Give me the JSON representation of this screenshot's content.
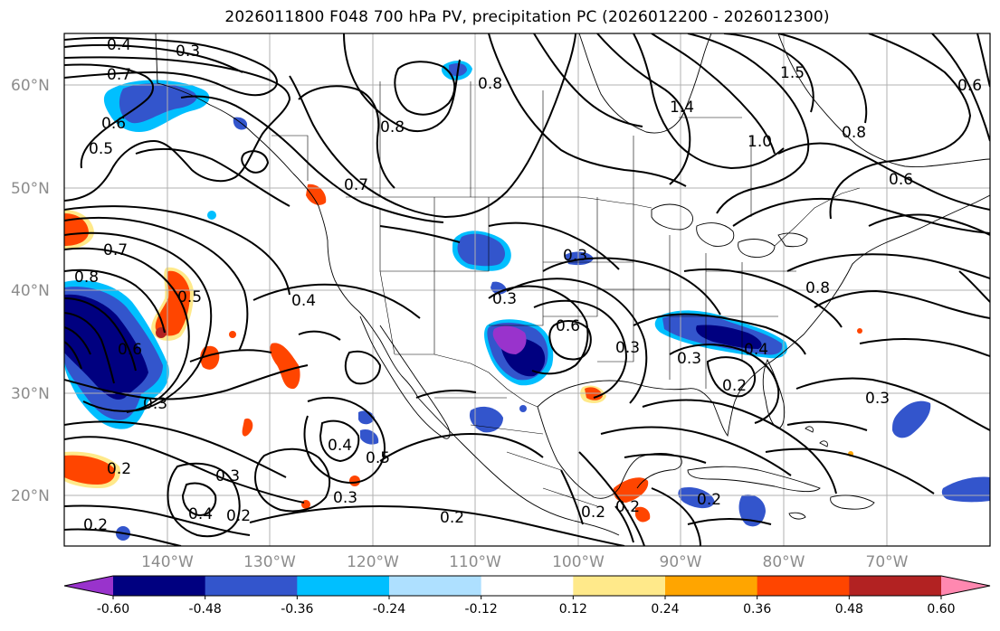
{
  "title": "2026011800 F048 700 hPa PV, precipitation PC (2026012200 - 2026012300)",
  "lat_labels": [
    "60°N",
    "50°N",
    "40°N",
    "30°N",
    "20°N"
  ],
  "lon_labels": [
    "140°W",
    "130°W",
    "120°W",
    "110°W",
    "100°W",
    "90°W",
    "80°W",
    "70°W"
  ],
  "colorbar": {
    "ticks": [
      "-0.60",
      "-0.48",
      "-0.36",
      "-0.24",
      "-0.12",
      "0.12",
      "0.24",
      "0.36",
      "0.48",
      "0.60"
    ],
    "colors": [
      "#9933cc",
      "#000080",
      "#3355cc",
      "#00bfff",
      "#aee0ff",
      "#ffffff",
      "#ffe98a",
      "#ffa500",
      "#ff4500",
      "#b22222",
      "#ff88b0"
    ]
  },
  "contour_labels": [
    {
      "text": "0.4",
      "near": "north-pacific"
    },
    {
      "text": "0.3",
      "near": "north-pacific"
    },
    {
      "text": "0.7",
      "near": "gulf-of-alaska"
    },
    {
      "text": "0.6",
      "near": "gulf-of-alaska"
    },
    {
      "text": "0.5",
      "near": "gulf-of-alaska"
    },
    {
      "text": "0.8",
      "near": "hudson-bay"
    },
    {
      "text": "0.8",
      "near": "canada"
    },
    {
      "text": "1.4",
      "near": "hudson-bay"
    },
    {
      "text": "1.5",
      "near": "labrador"
    },
    {
      "text": "1.0",
      "near": "hudson-bay"
    },
    {
      "text": "0.6",
      "near": "greenland"
    },
    {
      "text": "0.8",
      "near": "quebec"
    },
    {
      "text": "0.6",
      "near": "quebec"
    },
    {
      "text": "0.7",
      "near": "british-columbia"
    },
    {
      "text": "0.7",
      "near": "east-pacific"
    },
    {
      "text": "0.8",
      "near": "east-pacific"
    },
    {
      "text": "0.6",
      "near": "east-pacific"
    },
    {
      "text": "0.5",
      "near": "east-pacific"
    },
    {
      "text": "0.3",
      "near": "east-pacific"
    },
    {
      "text": "0.4",
      "near": "california"
    },
    {
      "text": "0.3",
      "near": "great-lakes"
    },
    {
      "text": "0.3",
      "near": "southern-rockies"
    },
    {
      "text": "0.6",
      "near": "texas"
    },
    {
      "text": "0.3",
      "near": "texas"
    },
    {
      "text": "0.3",
      "near": "southeast-us"
    },
    {
      "text": "0.4",
      "near": "southeast-us"
    },
    {
      "text": "0.2",
      "near": "florida"
    },
    {
      "text": "0.8",
      "near": "mid-atlantic"
    },
    {
      "text": "0.3",
      "near": "western-atlantic"
    },
    {
      "text": "0.2",
      "near": "subtropical-pacific"
    },
    {
      "text": "0.4",
      "near": "baja"
    },
    {
      "text": "0.5",
      "near": "baja"
    },
    {
      "text": "0.3",
      "near": "baja"
    },
    {
      "text": "0.3",
      "near": "subtropical-pacific"
    },
    {
      "text": "0.4",
      "near": "subtropical-pacific"
    },
    {
      "text": "0.2",
      "near": "subtropical-pacific"
    },
    {
      "text": "0.2",
      "near": "mexico"
    },
    {
      "text": "0.2",
      "near": "mexico"
    },
    {
      "text": "0.2",
      "near": "central-america"
    },
    {
      "text": "0.2",
      "near": "caribbean"
    },
    {
      "text": "0.2",
      "near": "tropical-pacific"
    }
  ]
}
